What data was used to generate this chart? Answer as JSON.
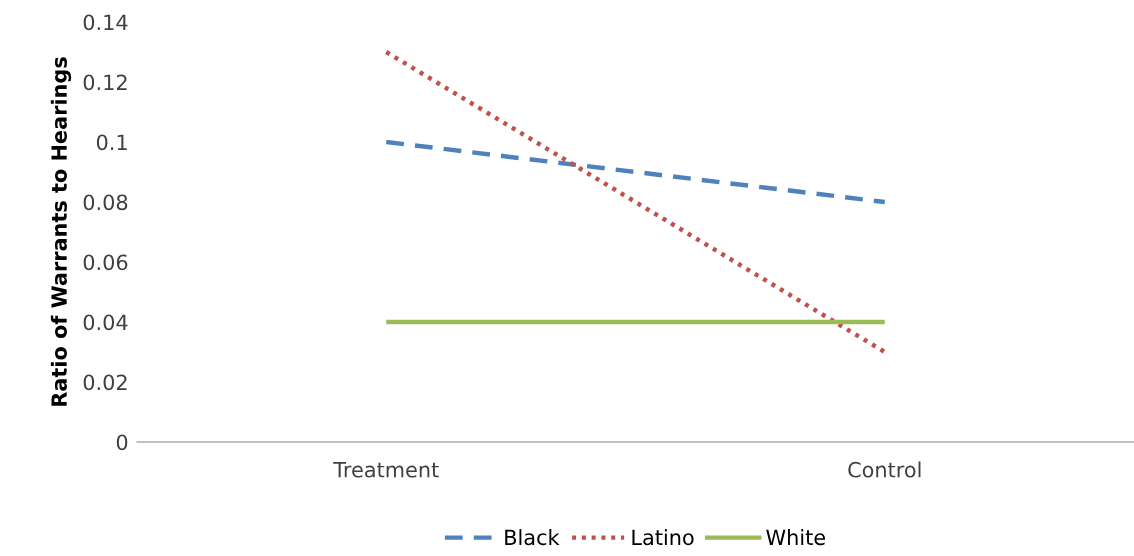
{
  "chart_data": {
    "type": "line",
    "ylabel": "Ratio of Warrants to Hearings",
    "categories": [
      "Treatment",
      "Control"
    ],
    "series": [
      {
        "name": "Black",
        "color": "#4f81bd",
        "line_style": "dashed",
        "values": [
          0.1,
          0.08
        ]
      },
      {
        "name": "Latino",
        "color": "#c0504d",
        "line_style": "dotted",
        "values": [
          0.13,
          0.03
        ]
      },
      {
        "name": "White",
        "color": "#9bbb59",
        "line_style": "solid",
        "values": [
          0.04,
          0.04
        ]
      }
    ],
    "ylim": [
      0,
      0.14
    ],
    "yticks": [
      0,
      0.02,
      0.04,
      0.06,
      0.08,
      0.1,
      0.12,
      0.14
    ],
    "grid": false,
    "legend": "bottom",
    "marker": "none"
  }
}
